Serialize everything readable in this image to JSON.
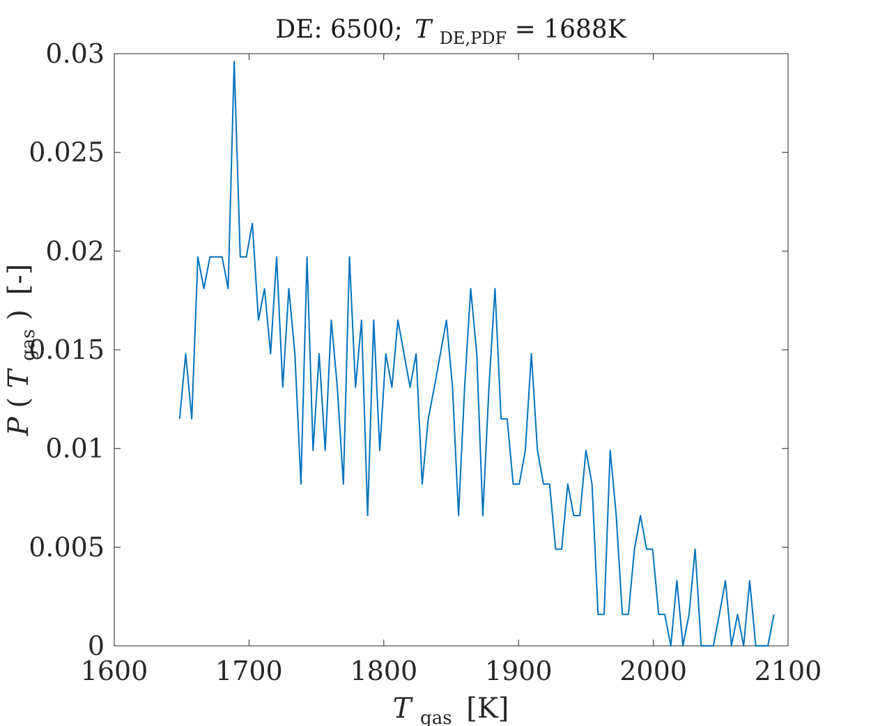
{
  "chart_data": {
    "type": "line",
    "title_prefix": "DE: 6500;",
    "title_var": "T",
    "title_sub": "DE,PDF",
    "title_suffix": "= 1688K",
    "xlabel_var": "T",
    "xlabel_sub": "gas",
    "xlabel_unit": "[K]",
    "ylabel_var": "P",
    "ylabel_inner_var": "T",
    "ylabel_sub": "gas",
    "ylabel_unit": "[-]",
    "xlim": [
      1600,
      2100
    ],
    "ylim": [
      0,
      0.03
    ],
    "xticks": [
      "1600",
      "1700",
      "1800",
      "1900",
      "2000",
      "2100"
    ],
    "yticks": [
      "0",
      "0.005",
      "0.01",
      "0.015",
      "0.02",
      "0.025",
      "0.03"
    ],
    "grid": false,
    "line_color": "#0072BD",
    "series": [
      {
        "x": [
          1648.5,
          1653,
          1657.5,
          1662,
          1666.5,
          1671,
          1675.5,
          1680,
          1684.5,
          1689,
          1693.5,
          1698,
          1702.5,
          1707,
          1711.5,
          1716,
          1720.5,
          1725,
          1729.5,
          1734,
          1738.5,
          1743,
          1747.5,
          1752,
          1756.5,
          1761,
          1765.5,
          1770,
          1774.5,
          1779,
          1783.5,
          1788,
          1792.5,
          1797,
          1801.5,
          1806,
          1810.5,
          1815,
          1819.5,
          1824,
          1828.5,
          1833,
          1837.5,
          1842,
          1846.5,
          1851,
          1855.5,
          1860,
          1864.5,
          1869,
          1873.5,
          1878,
          1882.5,
          1887,
          1891.5,
          1896,
          1900.5,
          1905,
          1909.5,
          1914,
          1918.5,
          1923,
          1927.5,
          1932,
          1936.5,
          1941,
          1945.5,
          1950,
          1954.5,
          1959,
          1963.5,
          1968,
          1972.5,
          1977,
          1981.5,
          1986,
          1990.5,
          1995,
          1999.5,
          2004,
          2008.5,
          2013,
          2017.5,
          2022,
          2026.5,
          2031,
          2035.5,
          2040,
          2044.5,
          2049,
          2053.5,
          2058,
          2062.5,
          2067,
          2071.5,
          2076,
          2080.5,
          2085,
          2089.5
        ],
        "values": [
          0.0115,
          0.0148,
          0.0115,
          0.0197,
          0.0181,
          0.0197,
          0.0197,
          0.0197,
          0.0181,
          0.0296,
          0.0197,
          0.0197,
          0.0214,
          0.0165,
          0.0181,
          0.0148,
          0.0197,
          0.0131,
          0.0181,
          0.0148,
          0.0082,
          0.0197,
          0.0099,
          0.0148,
          0.0099,
          0.0165,
          0.0131,
          0.0082,
          0.0197,
          0.0131,
          0.0165,
          0.0066,
          0.0165,
          0.0099,
          0.0148,
          0.0131,
          0.0165,
          0.0148,
          0.0131,
          0.0148,
          0.0082,
          0.0115,
          0.0131,
          0.0148,
          0.0165,
          0.0131,
          0.0066,
          0.0131,
          0.0181,
          0.0148,
          0.0066,
          0.0131,
          0.0181,
          0.0115,
          0.0115,
          0.0082,
          0.0082,
          0.0099,
          0.0148,
          0.0099,
          0.0082,
          0.0082,
          0.0049,
          0.0049,
          0.0082,
          0.0066,
          0.0066,
          0.0099,
          0.0082,
          0.0016,
          0.0016,
          0.0099,
          0.0066,
          0.0016,
          0.0016,
          0.0049,
          0.0066,
          0.0049,
          0.0049,
          0.0016,
          0.0016,
          0.0,
          0.0033,
          0.0,
          0.0016,
          0.0049,
          0.0,
          0.0,
          0.0,
          0.0016,
          0.0033,
          0.0,
          0.0016,
          0.0,
          0.0033,
          0.0,
          0.0,
          0.0,
          0.0016
        ]
      }
    ]
  }
}
